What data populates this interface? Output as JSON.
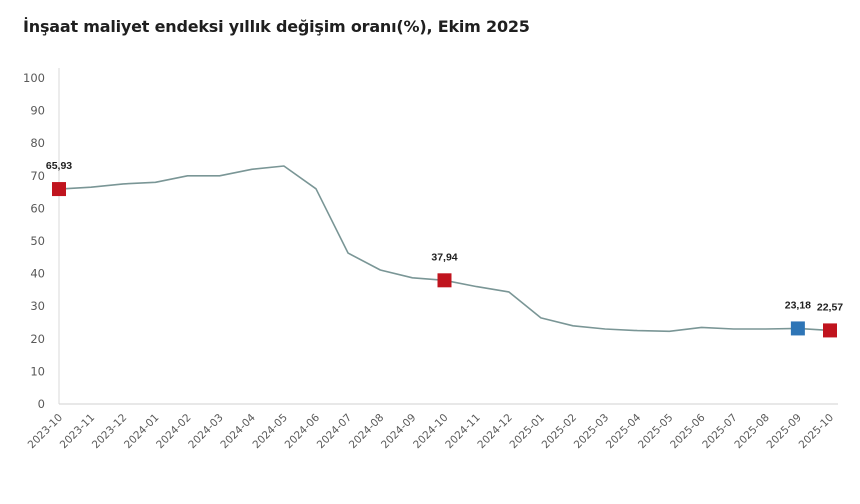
{
  "title": "İnşaat maliyet endeksi yıllık değişim oranı(%), Ekim 2025",
  "colors": {
    "line": "#7A9696",
    "highlight_red": "#C0141E",
    "highlight_blue": "#2E75B6",
    "axis": "#D9D9D9",
    "tick_text": "#595959"
  },
  "chart_data": {
    "type": "line",
    "title": "İnşaat maliyet endeksi yıllık değişim oranı(%), Ekim 2025",
    "xlabel": "",
    "ylabel": "",
    "ylim": [
      0,
      100
    ],
    "yticks": [
      0,
      10,
      20,
      30,
      40,
      50,
      60,
      70,
      80,
      90,
      100
    ],
    "grid": false,
    "legend": null,
    "categories": [
      "2023-10",
      "2023-11",
      "2023-12",
      "2024-01",
      "2024-02",
      "2024-03",
      "2024-04",
      "2024-05",
      "2024-06",
      "2024-07",
      "2024-08",
      "2024-09",
      "2024-10",
      "2024-11",
      "2024-12",
      "2025-01",
      "2025-02",
      "2025-03",
      "2025-04",
      "2025-05",
      "2025-06",
      "2025-07",
      "2025-08",
      "2025-09",
      "2025-10"
    ],
    "series": [
      {
        "name": "Yıllık değişim oranı (%)",
        "values": [
          65.93,
          66.5,
          67.5,
          68.0,
          70.0,
          70.0,
          72.0,
          73.0,
          66.0,
          46.3,
          41.1,
          38.7,
          37.94,
          36.0,
          34.4,
          26.4,
          24.0,
          23.0,
          22.5,
          22.3,
          23.5,
          23.0,
          23.0,
          23.18,
          22.57
        ]
      }
    ],
    "annotations": [
      {
        "category": "2023-10",
        "value": 65.93,
        "label": "65,93",
        "marker_color": "#C0141E"
      },
      {
        "category": "2024-10",
        "value": 37.94,
        "label": "37,94",
        "marker_color": "#C0141E"
      },
      {
        "category": "2025-09",
        "value": 23.18,
        "label": "23,18",
        "marker_color": "#2E75B6"
      },
      {
        "category": "2025-10",
        "value": 22.57,
        "label": "22,57",
        "marker_color": "#C0141E"
      }
    ]
  }
}
